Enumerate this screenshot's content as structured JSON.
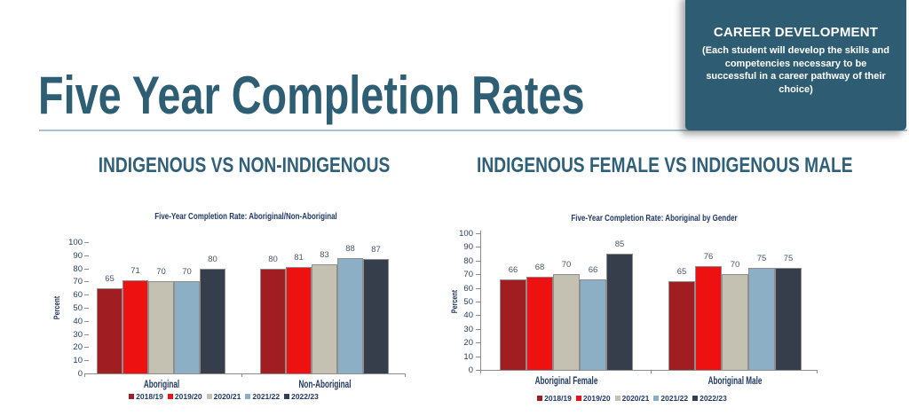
{
  "slide": {
    "title": "Five Year Completion Rates",
    "accent_color": "#2E5D73",
    "underline_color": "#A8C0CF"
  },
  "career_box": {
    "title": "CAREER DEVELOPMENT",
    "body_lines": [
      "(Each student will develop the skills and",
      "competencies necessary to be",
      "successful in a career pathway of their",
      "choice)"
    ]
  },
  "sections": [
    {
      "heading": "INDIGENOUS VS NON-INDIGENOUS"
    },
    {
      "heading": "INDIGENOUS FEMALE VS INDIGENOUS MALE"
    }
  ],
  "chart_data": [
    {
      "type": "bar",
      "title": "Five-Year Completion Rate: Aboriginal/Non-Aboriginal",
      "ylabel": "Percent",
      "xlabel": "",
      "ylim": [
        0,
        100
      ],
      "ytick_step": 10,
      "legend_position": "bottom",
      "grid": false,
      "categories": [
        "Aboriginal",
        "Non-Aboriginal"
      ],
      "series": [
        {
          "name": "2018/19",
          "color": "#A01D22",
          "values": [
            65,
            80
          ]
        },
        {
          "name": "2019/20",
          "color": "#EE1111",
          "values": [
            71,
            81
          ]
        },
        {
          "name": "2020/21",
          "color": "#C4C1B3",
          "values": [
            70,
            83
          ]
        },
        {
          "name": "2021/22",
          "color": "#8DAFC6",
          "values": [
            70,
            88
          ]
        },
        {
          "name": "2022/23",
          "color": "#363D4B",
          "values": [
            80,
            87
          ]
        }
      ]
    },
    {
      "type": "bar",
      "title": "Five-Year Completion Rate: Aboriginal by Gender",
      "ylabel": "Percent",
      "xlabel": "",
      "ylim": [
        0,
        100
      ],
      "ytick_step": 10,
      "legend_position": "bottom",
      "grid": false,
      "categories": [
        "Aboriginal Female",
        "Aboriginal Male"
      ],
      "series": [
        {
          "name": "2018/19",
          "color": "#A01D22",
          "values": [
            66,
            65
          ]
        },
        {
          "name": "2019/20",
          "color": "#EE1111",
          "values": [
            68,
            76
          ]
        },
        {
          "name": "2020/21",
          "color": "#C4C1B3",
          "values": [
            70,
            70
          ]
        },
        {
          "name": "2021/22",
          "color": "#8DAFC6",
          "values": [
            66,
            75
          ]
        },
        {
          "name": "2022/23",
          "color": "#363D4B",
          "values": [
            85,
            75
          ]
        }
      ]
    }
  ]
}
